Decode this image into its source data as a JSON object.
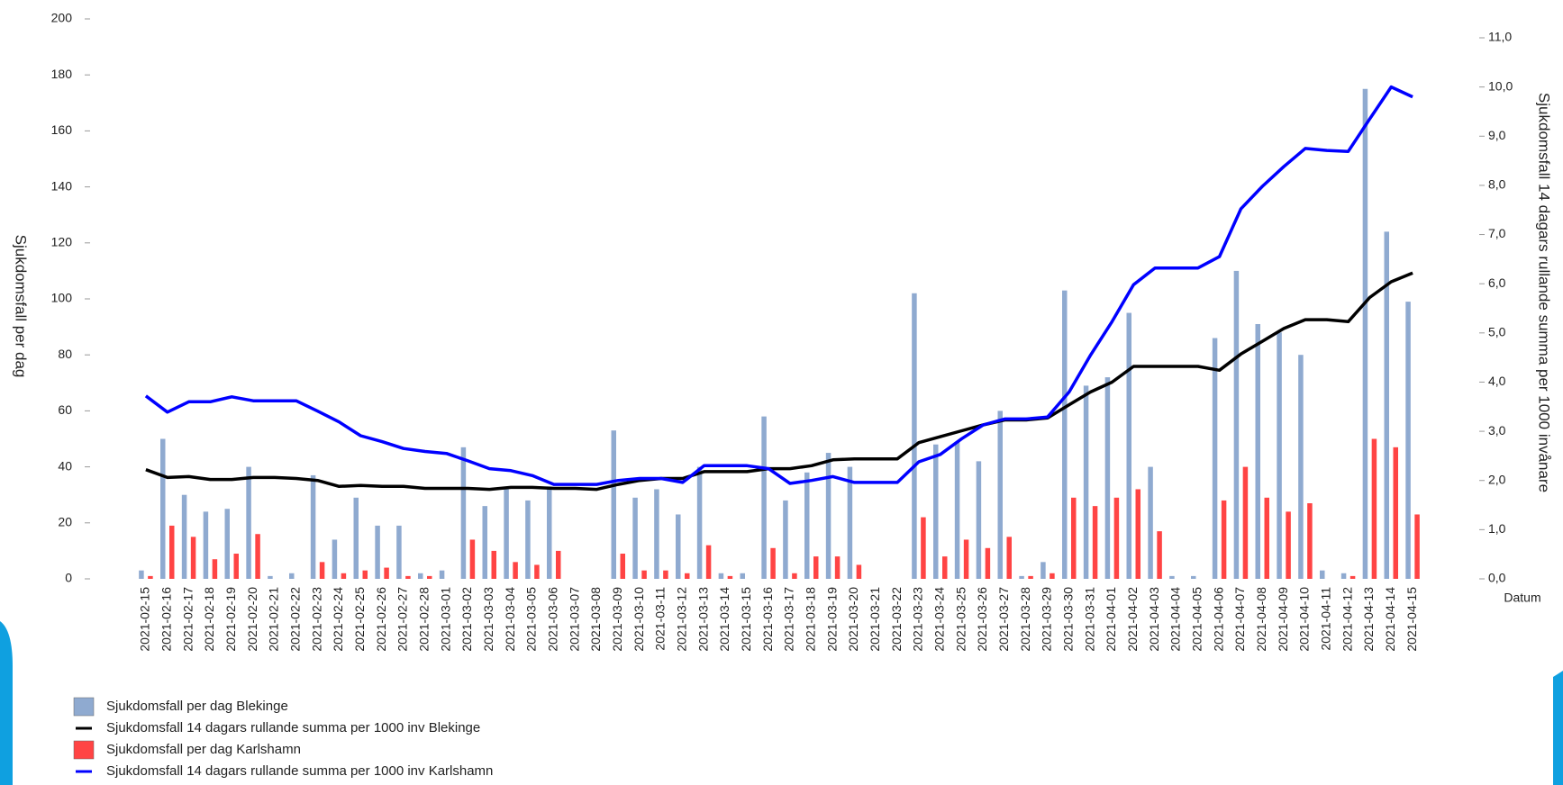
{
  "chart_data": {
    "type": "combo",
    "ylabel": "Sjukdomsfall per dag",
    "y2label": "Sjukdomsfall 14 dagars rullande summa per 1000 invånare",
    "xlabel": "Datum",
    "categories": [
      "2021-02-15",
      "2021-02-16",
      "2021-02-17",
      "2021-02-18",
      "2021-02-19",
      "2021-02-20",
      "2021-02-21",
      "2021-02-22",
      "2021-02-23",
      "2021-02-24",
      "2021-02-25",
      "2021-02-26",
      "2021-02-27",
      "2021-02-28",
      "2021-03-01",
      "2021-03-02",
      "2021-03-03",
      "2021-03-04",
      "2021-03-05",
      "2021-03-06",
      "2021-03-07",
      "2021-03-08",
      "2021-03-09",
      "2021-03-10",
      "2021-03-11",
      "2021-03-12",
      "2021-03-13",
      "2021-03-14",
      "2021-03-15",
      "2021-03-16",
      "2021-03-17",
      "2021-03-18",
      "2021-03-19",
      "2021-03-20",
      "2021-03-21",
      "2021-03-22",
      "2021-03-23",
      "2021-03-24",
      "2021-03-25",
      "2021-03-26",
      "2021-03-27",
      "2021-03-28",
      "2021-03-29",
      "2021-03-30",
      "2021-03-31",
      "2021-04-01",
      "2021-04-02",
      "2021-04-03",
      "2021-04-04",
      "2021-04-05",
      "2021-04-06",
      "2021-04-07",
      "2021-04-08",
      "2021-04-09",
      "2021-04-10",
      "2021-04-11",
      "2021-04-12",
      "2021-04-13",
      "2021-04-14",
      "2021-04-15"
    ],
    "series": [
      {
        "name": "Sjukdomsfall per dag Blekinge",
        "type": "bar",
        "color": "#8faad0",
        "axis": "y",
        "values": [
          3,
          50,
          30,
          24,
          25,
          40,
          1,
          2,
          37,
          14,
          29,
          19,
          19,
          2,
          3,
          47,
          26,
          32,
          28,
          33,
          0,
          0,
          53,
          29,
          32,
          23,
          40,
          2,
          2,
          58,
          28,
          38,
          45,
          40,
          0,
          0,
          102,
          48,
          49,
          42,
          60,
          1,
          6,
          103,
          69,
          72,
          95,
          40,
          1,
          1,
          86,
          110,
          91,
          88,
          80,
          3,
          2,
          175,
          124,
          99
        ]
      },
      {
        "name": "Sjukdomsfall 14 dagars rullande summa per 1000 inv Blekinge",
        "type": "line",
        "color": "#000000",
        "axis": "y2",
        "values": [
          2.22,
          2.06,
          2.08,
          2.02,
          2.02,
          2.06,
          2.06,
          2.04,
          2.0,
          1.88,
          1.9,
          1.88,
          1.88,
          1.84,
          1.84,
          1.84,
          1.82,
          1.86,
          1.86,
          1.84,
          1.84,
          1.82,
          1.92,
          2.0,
          2.04,
          2.04,
          2.18,
          2.18,
          2.18,
          2.24,
          2.24,
          2.3,
          2.42,
          2.44,
          2.44,
          2.44,
          2.77,
          2.89,
          3.01,
          3.13,
          3.23,
          3.23,
          3.27,
          3.54,
          3.8,
          4.0,
          4.32,
          4.32,
          4.32,
          4.32,
          4.24,
          4.57,
          4.83,
          5.09,
          5.27,
          5.27,
          5.23,
          5.72,
          6.04,
          6.22
        ]
      },
      {
        "name": "Sjukdomsfall per dag Karlshamn",
        "type": "bar",
        "color": "#ff4444",
        "axis": "y",
        "values": [
          1,
          19,
          15,
          7,
          9,
          16,
          0,
          0,
          6,
          2,
          3,
          4,
          1,
          1,
          0,
          14,
          10,
          6,
          5,
          10,
          0,
          0,
          9,
          3,
          3,
          2,
          12,
          1,
          0,
          11,
          2,
          8,
          8,
          5,
          0,
          0,
          22,
          8,
          14,
          11,
          15,
          1,
          2,
          29,
          26,
          29,
          32,
          17,
          0,
          0,
          28,
          40,
          29,
          24,
          27,
          0,
          1,
          50,
          47,
          23
        ]
      },
      {
        "name": "Sjukdomsfall 14 dagars rullande summa per 1000 inv Karlshamn",
        "type": "line",
        "color": "#0000ff",
        "axis": "y2",
        "values": [
          3.72,
          3.39,
          3.6,
          3.6,
          3.7,
          3.62,
          3.62,
          3.62,
          3.41,
          3.19,
          2.91,
          2.79,
          2.65,
          2.59,
          2.55,
          2.4,
          2.24,
          2.2,
          2.1,
          1.92,
          1.92,
          1.92,
          2.0,
          2.04,
          2.04,
          1.96,
          2.3,
          2.3,
          2.3,
          2.24,
          1.94,
          2.0,
          2.08,
          1.96,
          1.96,
          1.96,
          2.38,
          2.53,
          2.85,
          3.13,
          3.25,
          3.25,
          3.29,
          3.8,
          4.55,
          5.23,
          5.98,
          6.32,
          6.32,
          6.32,
          6.55,
          7.52,
          7.98,
          8.38,
          8.75,
          8.71,
          8.69,
          9.35,
          10.0,
          9.8
        ]
      }
    ],
    "ylim": [
      0,
      200
    ],
    "yticks": [
      0,
      20,
      40,
      60,
      80,
      100,
      120,
      140,
      160,
      180,
      200
    ],
    "y2lim": [
      0,
      11
    ],
    "y2ticks": [
      {
        "value": 0,
        "label": "0,0"
      },
      {
        "value": 1,
        "label": "1,0"
      },
      {
        "value": 2,
        "label": "2,0"
      },
      {
        "value": 3,
        "label": "3,0"
      },
      {
        "value": 4,
        "label": "4,0"
      },
      {
        "value": 5,
        "label": "5,0"
      },
      {
        "value": 6,
        "label": "6,0"
      },
      {
        "value": 7,
        "label": "7,0"
      },
      {
        "value": 8,
        "label": "8,0"
      },
      {
        "value": 9,
        "label": "9,0"
      },
      {
        "value": 10,
        "label": "10,0"
      },
      {
        "value": 11,
        "label": "11,0"
      }
    ],
    "legend": "bottom-left"
  }
}
